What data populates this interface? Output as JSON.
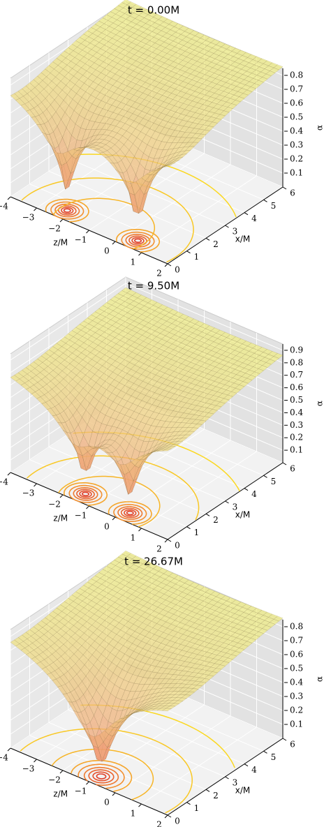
{
  "chart_data": [
    {
      "type": "surface3d",
      "title": "t = 0.00M",
      "xlabel": "z/M",
      "xlim": [
        -4,
        2
      ],
      "xticks": [
        {
          "value": -4,
          "label": "−4"
        },
        {
          "value": -3,
          "label": "−3"
        },
        {
          "value": -2,
          "label": "−2"
        },
        {
          "value": -1,
          "label": "−1"
        },
        0,
        1,
        2
      ],
      "ylabel": "x/M",
      "ylim": [
        0,
        6
      ],
      "yticks": [
        0,
        1,
        2,
        3,
        4,
        5,
        6
      ],
      "zlabel": "α",
      "zlim": [
        0,
        0.85
      ],
      "zticks": [
        0.1,
        0.2,
        0.3,
        0.4,
        0.5,
        0.6,
        0.7,
        0.8
      ]
    },
    {
      "type": "surface3d",
      "title": "t = 9.50M",
      "xlabel": "z/M",
      "xlim": [
        -4,
        2
      ],
      "xticks": [
        {
          "value": -4,
          "label": "−4"
        },
        {
          "value": -3,
          "label": "−3"
        },
        {
          "value": -2,
          "label": "−2"
        },
        {
          "value": -1,
          "label": "−1"
        },
        0,
        1,
        2
      ],
      "ylabel": "x/M",
      "ylim": [
        0,
        6
      ],
      "yticks": [
        0,
        1,
        2,
        3,
        4,
        5,
        6
      ],
      "zlabel": "α",
      "zlim": [
        0,
        0.95
      ],
      "zticks": [
        0.1,
        0.2,
        0.3,
        0.4,
        0.5,
        0.6,
        0.7,
        0.8,
        0.9
      ]
    },
    {
      "type": "surface3d",
      "title": "t = 26.67M",
      "xlabel": "z/M",
      "xlim": [
        -4,
        2
      ],
      "xticks": [
        {
          "value": -4,
          "label": "−4"
        },
        {
          "value": -3,
          "label": "−3"
        },
        {
          "value": -2,
          "label": "−2"
        },
        {
          "value": -1,
          "label": "−1"
        },
        0,
        1,
        2
      ],
      "ylabel": "x/M",
      "ylim": [
        0,
        6
      ],
      "yticks": [
        0,
        1,
        2,
        3,
        4,
        5,
        6
      ],
      "zlabel": "α",
      "zlim": [
        0,
        0.85
      ],
      "zticks": [
        0.1,
        0.2,
        0.3,
        0.4,
        0.5,
        0.6,
        0.7,
        0.8
      ]
    }
  ]
}
